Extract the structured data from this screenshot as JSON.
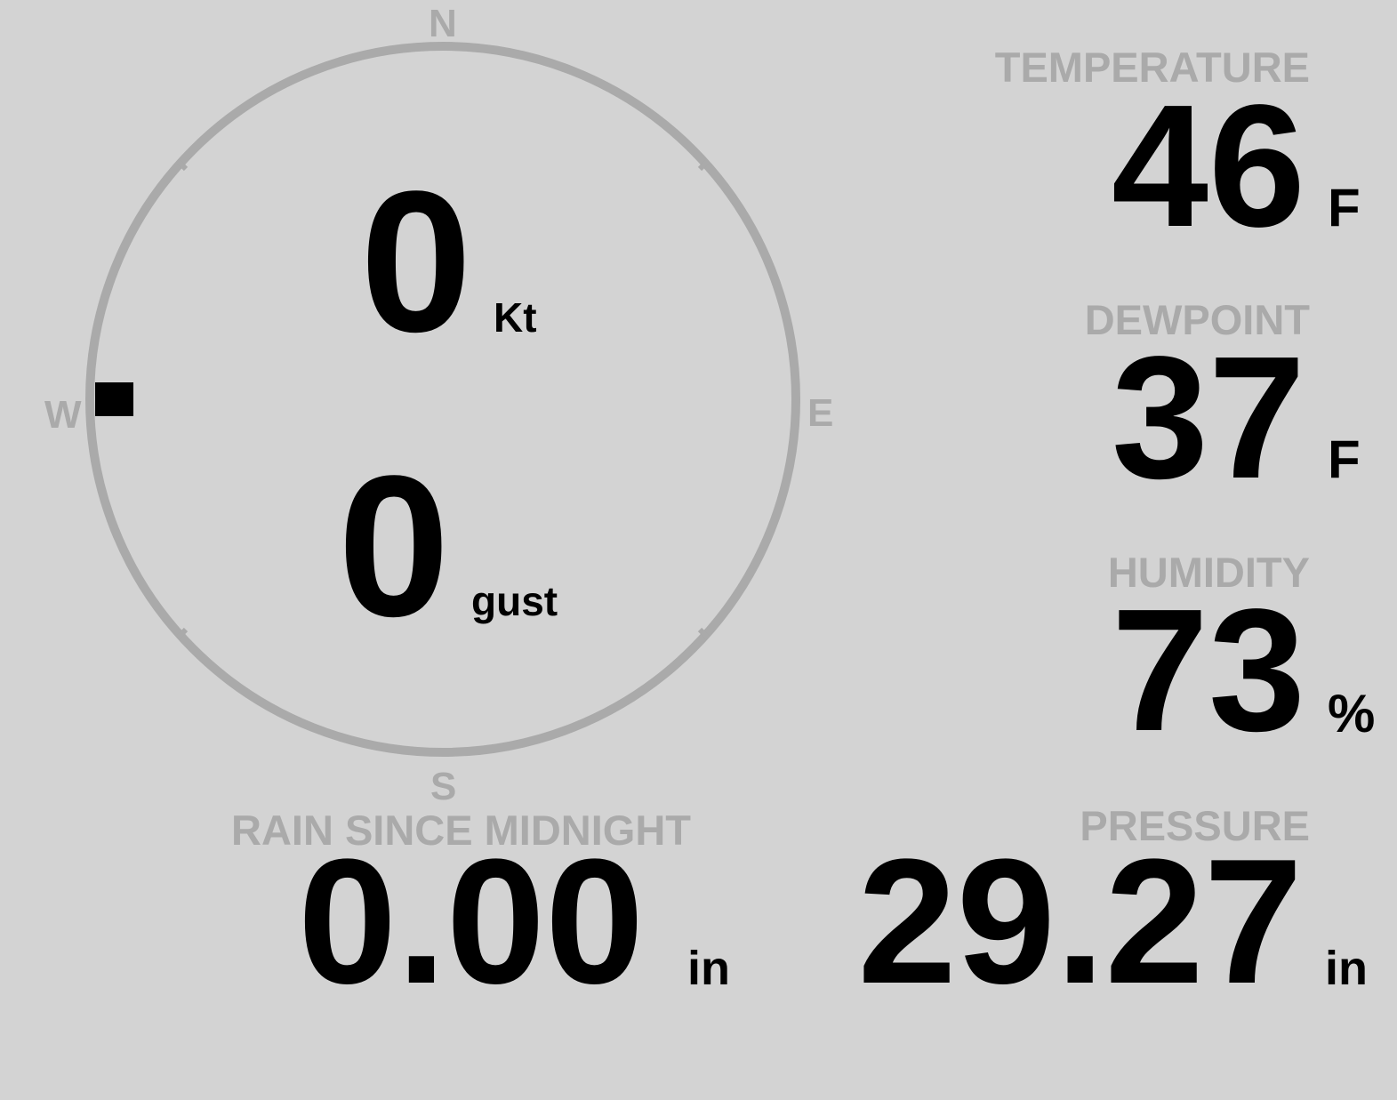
{
  "colors": {
    "background": "#d3d3d3",
    "label": "#aaaaaa",
    "value": "#000000",
    "ring": "#aaaaaa"
  },
  "compass": {
    "n": "N",
    "e": "E",
    "s": "S",
    "w": "W",
    "wind_direction_deg": 270
  },
  "wind": {
    "speed": "0",
    "speed_unit": "Kt",
    "gust": "0",
    "gust_unit": "gust"
  },
  "temperature": {
    "label": "TEMPERATURE",
    "value": "46",
    "unit": "F"
  },
  "dewpoint": {
    "label": "DEWPOINT",
    "value": "37",
    "unit": "F"
  },
  "humidity": {
    "label": "HUMIDITY",
    "value": "73",
    "unit": "%"
  },
  "pressure": {
    "label": "PRESSURE",
    "value": "29.27",
    "unit": "in"
  },
  "rain": {
    "label": "RAIN SINCE MIDNIGHT",
    "value": "0.00",
    "unit": "in"
  }
}
